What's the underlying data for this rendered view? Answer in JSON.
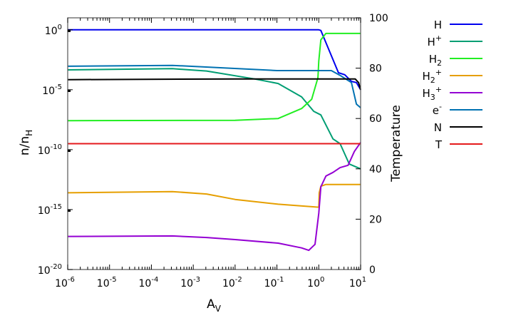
{
  "chart_data": {
    "type": "line",
    "title": "",
    "xlabel": {
      "base": "A",
      "sub": "V"
    },
    "ylabel": {
      "base": "n/n",
      "sub": "H"
    },
    "y2label": "Temperature",
    "xscale": "log",
    "yscale": "log",
    "xlim_exp": [
      -6,
      1
    ],
    "ylim_exp": [
      -20,
      1
    ],
    "y2lim": [
      0,
      100
    ],
    "x_tick_exponents": [
      -6,
      -5,
      -4,
      -3,
      -2,
      -1,
      0,
      1
    ],
    "y_tick_exponents": [
      0,
      -5,
      -10,
      -15,
      -20
    ],
    "y2_ticks": [
      0,
      20,
      40,
      60,
      80,
      100
    ],
    "tick_base": "10",
    "grid": false,
    "legend_position": "outside-right",
    "series": [
      {
        "name": "H",
        "label_base": "H",
        "label_sup": "",
        "label_sub": "",
        "color": "#0000ee",
        "axis": "left",
        "log_x": [
          -6,
          0.0,
          0.05,
          0.47,
          0.62,
          0.78,
          0.9,
          1.0
        ],
        "log_y": [
          0,
          0,
          -0.05,
          -3.58,
          -3.75,
          -4.3,
          -4.4,
          -5.0
        ]
      },
      {
        "name": "H+",
        "label_base": "H",
        "label_sup": "+",
        "label_sub": "",
        "color": "#009e73",
        "axis": "left",
        "log_x": [
          -6,
          -3.5,
          -2.68,
          -1.54,
          -0.97,
          -0.41,
          -0.12,
          0.05,
          0.34,
          0.51,
          0.73,
          1.0
        ],
        "log_y": [
          -3.34,
          -3.24,
          -3.44,
          -4.1,
          -4.48,
          -5.6,
          -6.8,
          -7.1,
          -9.1,
          -9.5,
          -11.2,
          -11.6
        ]
      },
      {
        "name": "H2",
        "label_base": "H",
        "label_sup": "",
        "label_sub": "2",
        "color": "#22ee22",
        "axis": "left",
        "log_x": [
          -6,
          -2.0,
          -0.97,
          -0.41,
          -0.17,
          -0.02,
          0.0,
          0.05,
          0.17,
          1.0
        ],
        "log_y": [
          -7.58,
          -7.55,
          -7.4,
          -6.57,
          -5.8,
          -4.0,
          -2.6,
          -0.84,
          -0.3,
          -0.3
        ]
      },
      {
        "name": "H2+",
        "label_base": "H",
        "label_sup": "+",
        "label_sub": "2",
        "color": "#e69f00",
        "axis": "left",
        "log_x": [
          -6,
          -3.5,
          -2.68,
          -2.0,
          -0.97,
          0.0,
          0.01,
          0.05,
          0.17,
          1.0
        ],
        "log_y": [
          -13.6,
          -13.5,
          -13.7,
          -14.15,
          -14.55,
          -14.8,
          -13.6,
          -13.05,
          -12.9,
          -12.9
        ]
      },
      {
        "name": "H3+",
        "label_base": "H",
        "label_sup": "+",
        "label_sub": "3",
        "color": "#9400d3",
        "axis": "left",
        "log_x": [
          -6,
          -3.5,
          -2.68,
          -2.0,
          -0.97,
          -0.41,
          -0.24,
          -0.09,
          0.0,
          0.05,
          0.17,
          0.34,
          0.51,
          0.7,
          0.85,
          1.0
        ],
        "log_y": [
          -17.24,
          -17.2,
          -17.33,
          -17.5,
          -17.8,
          -18.2,
          -18.4,
          -17.9,
          -15.3,
          -13.1,
          -12.2,
          -11.9,
          -11.5,
          -11.3,
          -10.15,
          -9.4
        ]
      },
      {
        "name": "e-",
        "label_base": "e",
        "label_sup": "-",
        "label_sub": "",
        "color": "#0072b2",
        "axis": "left",
        "log_x": [
          -6,
          -3.5,
          -1.0,
          0.3,
          0.51,
          0.78,
          0.9,
          1.0
        ],
        "log_y": [
          -3.04,
          -2.97,
          -3.4,
          -3.4,
          -3.8,
          -4.4,
          -6.2,
          -6.5
        ]
      },
      {
        "name": "N",
        "label_base": "N",
        "label_sup": "",
        "label_sub": "",
        "color": "#000000",
        "axis": "left",
        "log_x": [
          -6,
          -2.0,
          0.87,
          0.95,
          1.0
        ],
        "log_y": [
          -4.16,
          -4.1,
          -4.1,
          -4.4,
          -5.0
        ]
      },
      {
        "name": "T",
        "label_base": "T",
        "label_sup": "",
        "label_sub": "",
        "color": "#e41a1c",
        "axis": "right",
        "log_x": [
          -6,
          1
        ],
        "y": [
          50,
          50
        ]
      }
    ]
  }
}
